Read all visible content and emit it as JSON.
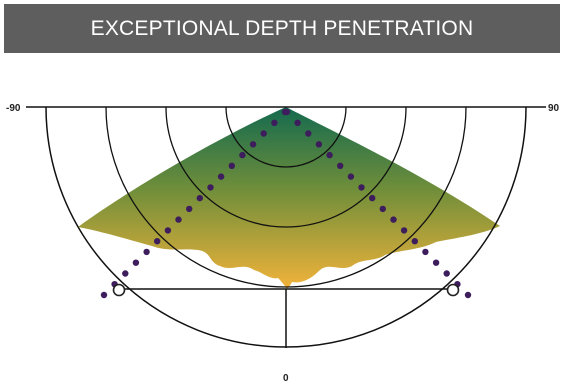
{
  "header": {
    "title": "EXCEPTIONAL DEPTH PENETRATION"
  },
  "diagram": {
    "angle_labels": {
      "left": "-90",
      "right": "90",
      "bottom": "0"
    },
    "colors": {
      "banner": "#5e5e5e",
      "gradient_top": "#146a4f",
      "gradient_mid": "#8a9a36",
      "gradient_bottom": "#f2b33a",
      "dots": "#3d1d5c",
      "lines": "#111111"
    }
  }
}
